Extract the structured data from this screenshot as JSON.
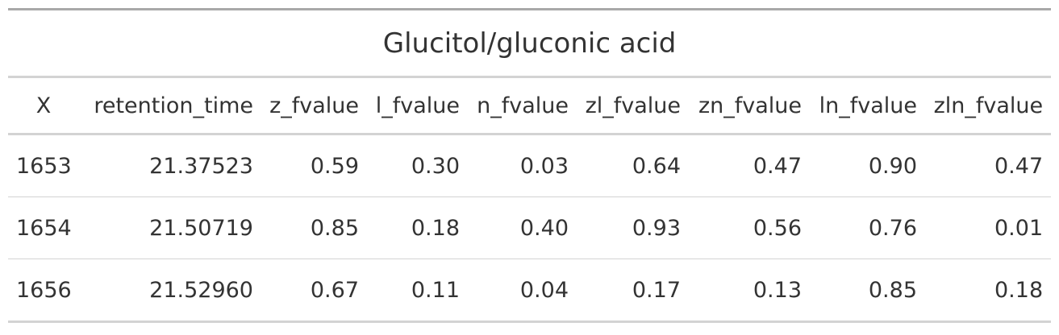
{
  "table": {
    "title": "Glucitol/gluconic acid",
    "columns": [
      "X",
      "retention_time",
      "z_fvalue",
      "l_fvalue",
      "n_fvalue",
      "zl_fvalue",
      "zn_fvalue",
      "ln_fvalue",
      "zln_fvalue"
    ],
    "rows": [
      [
        "1653",
        "21.37523",
        "0.59",
        "0.30",
        "0.03",
        "0.64",
        "0.47",
        "0.90",
        "0.47"
      ],
      [
        "1654",
        "21.50719",
        "0.85",
        "0.18",
        "0.40",
        "0.93",
        "0.56",
        "0.76",
        "0.01"
      ],
      [
        "1656",
        "21.52960",
        "0.67",
        "0.11",
        "0.04",
        "0.17",
        "0.13",
        "0.85",
        "0.18"
      ]
    ],
    "colors": {
      "text": "#333333",
      "top_border": "#a9a9a9",
      "rule": "#d3d3d3"
    }
  }
}
